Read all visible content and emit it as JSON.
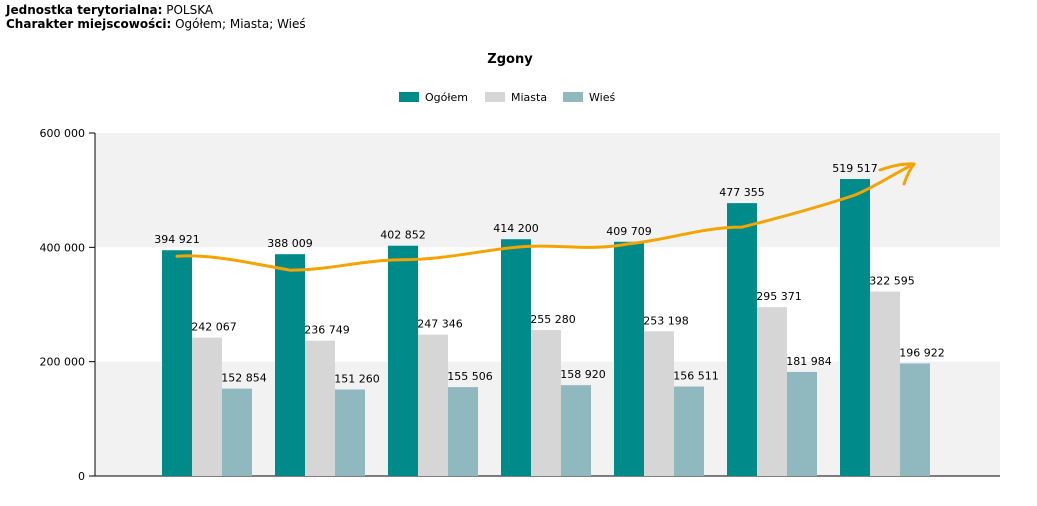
{
  "header": {
    "unit_label": "Jednostka terytorialna:",
    "unit_value": "POLSKA",
    "type_label": "Charakter miejscowości:",
    "type_value": "Ogółem; Miasta; Wieś"
  },
  "colors": {
    "ogolem": "#008b8b",
    "miasta": "#d6d6d6",
    "wies": "#8fb8bf",
    "band": "#f2f2f2",
    "trend": "#f5a300"
  },
  "chart_data": {
    "type": "bar",
    "title": "Zgony",
    "xlabel": "",
    "ylabel": "",
    "ylim": [
      0,
      600000
    ],
    "yticks": [
      0,
      200000,
      400000,
      600000
    ],
    "ytick_labels": [
      "0",
      "200 000",
      "400 000",
      "600 000"
    ],
    "legend_position": "top-center",
    "grid": "alternating horizontal bands",
    "categories": [
      "",
      "",
      "",
      "",
      "",
      "",
      ""
    ],
    "series": [
      {
        "name": "Ogółem",
        "values": [
          394921,
          388009,
          402852,
          414200,
          409709,
          477355,
          519517
        ],
        "labels": [
          "394 921",
          "388 009",
          "402 852",
          "414 200",
          "409 709",
          "477 355",
          "519 517"
        ]
      },
      {
        "name": "Miasta",
        "values": [
          242067,
          236749,
          247346,
          255280,
          253198,
          295371,
          322595
        ],
        "labels": [
          "242 067",
          "236 749",
          "247 346",
          "255 280",
          "253 198",
          "295 371",
          "322 595"
        ]
      },
      {
        "name": "Wieś",
        "values": [
          152854,
          151260,
          155506,
          158920,
          156511,
          181984,
          196922
        ],
        "labels": [
          "152 854",
          "151 260",
          "155 506",
          "158 920",
          "156 511",
          "181 984",
          "196 922"
        ]
      }
    ],
    "annotation": "hand-drawn orange trend arrow following Ogółem"
  }
}
